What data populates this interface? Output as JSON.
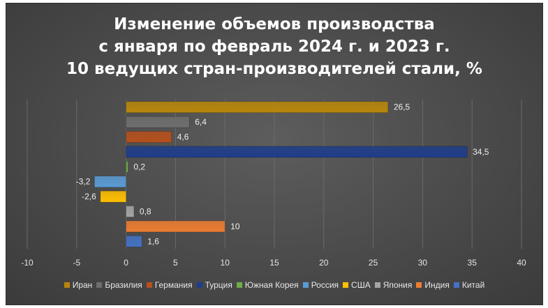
{
  "chart_data": {
    "type": "bar",
    "orientation": "horizontal",
    "title_lines": [
      "Изменение объемов производства",
      "с января по февраль 2024 г. и 2023 г.",
      "10 ведущих стран-производителей стали, %"
    ],
    "xlim": [
      -10,
      40
    ],
    "x_ticks": [
      "-10",
      "-5",
      "0",
      "5",
      "10",
      "15",
      "20",
      "25",
      "30",
      "35",
      "40"
    ],
    "grid": true,
    "legend_position": "bottom",
    "series": [
      {
        "name": "Иран",
        "value": 26.5,
        "label": "26,5",
        "color": "#b8860b"
      },
      {
        "name": "Бразилия",
        "value": 6.4,
        "label": "6,4",
        "color": "#6e6e6e"
      },
      {
        "name": "Германия",
        "value": 4.6,
        "label": "4,6",
        "color": "#b5501c"
      },
      {
        "name": "Турция",
        "value": 34.5,
        "label": "34,5",
        "color": "#1f3d8a"
      },
      {
        "name": "Южная Корея",
        "value": 0.2,
        "label": "0,2",
        "color": "#70ad47"
      },
      {
        "name": "Россия",
        "value": -3.2,
        "label": "-3,2",
        "color": "#5b9bd5"
      },
      {
        "name": "США",
        "value": -2.6,
        "label": "-2,6",
        "color": "#ffc000"
      },
      {
        "name": "Япония",
        "value": 0.8,
        "label": "0,8",
        "color": "#a5a5a5"
      },
      {
        "name": "Индия",
        "value": 10,
        "label": "10",
        "color": "#ed7d31"
      },
      {
        "name": "Китай",
        "value": 1.6,
        "label": "1,6",
        "color": "#4472c4"
      }
    ]
  }
}
